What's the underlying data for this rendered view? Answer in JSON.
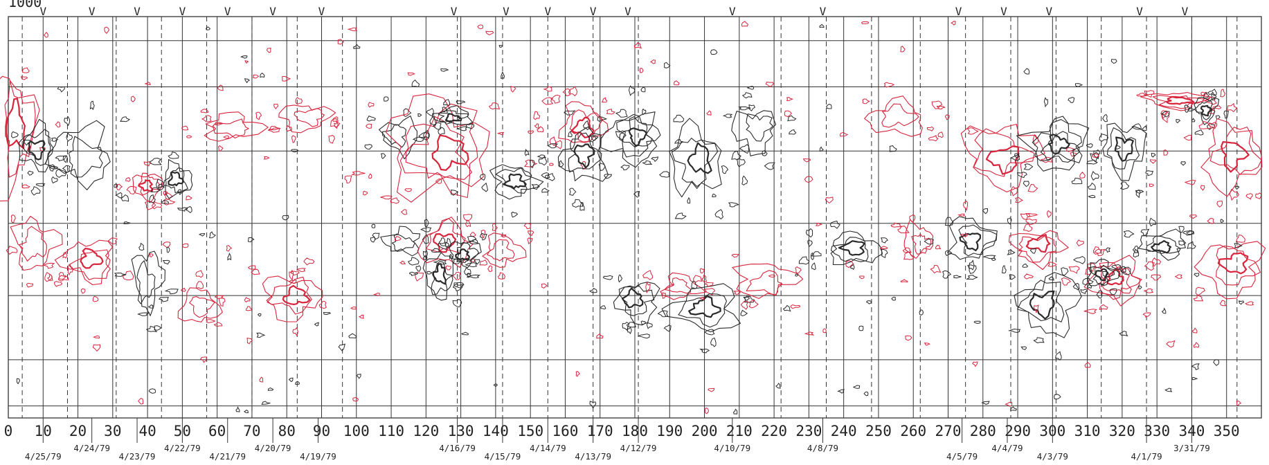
{
  "chart_data": {
    "type": "contour",
    "header_text": "1000",
    "xlim": [
      0,
      360
    ],
    "x_ticks": [
      0,
      10,
      20,
      30,
      40,
      50,
      60,
      70,
      80,
      90,
      100,
      110,
      120,
      130,
      140,
      150,
      160,
      170,
      180,
      190,
      200,
      210,
      220,
      230,
      240,
      250,
      260,
      270,
      280,
      290,
      300,
      310,
      320,
      330,
      340,
      350
    ],
    "grid_columns_deg": 10,
    "grid_row_fractions": [
      0.0,
      0.06,
      0.175,
      0.335,
      0.515,
      0.695,
      0.855,
      0.97,
      1.0
    ],
    "dashed_lines_deg": [
      4,
      17,
      31,
      44,
      57,
      70,
      83,
      96,
      129,
      142,
      155,
      168,
      181,
      222,
      235,
      248,
      262,
      275,
      288,
      301,
      314,
      327,
      340,
      353
    ],
    "markers": {
      "symbol": "V",
      "x": [
        10,
        24,
        37,
        50,
        63,
        76,
        90,
        128,
        143,
        155,
        168,
        178,
        208,
        234,
        273,
        286,
        299,
        325,
        338
      ]
    },
    "date_labels": [
      {
        "x": 10,
        "text": "4/25/79",
        "row": 2
      },
      {
        "x": 24,
        "text": "4/24/79",
        "row": 1
      },
      {
        "x": 37,
        "text": "4/23/79",
        "row": 2
      },
      {
        "x": 50,
        "text": "4/22/79",
        "row": 1
      },
      {
        "x": 63,
        "text": "4/21/79",
        "row": 2
      },
      {
        "x": 76,
        "text": "4/20/79",
        "row": 1
      },
      {
        "x": 89,
        "text": "4/19/79",
        "row": 2
      },
      {
        "x": 129,
        "text": "4/16/79",
        "row": 1
      },
      {
        "x": 142,
        "text": "4/15/79",
        "row": 2
      },
      {
        "x": 155,
        "text": "4/14/79",
        "row": 1
      },
      {
        "x": 168,
        "text": "4/13/79",
        "row": 2
      },
      {
        "x": 181,
        "text": "4/12/79",
        "row": 1
      },
      {
        "x": 208,
        "text": "4/10/79",
        "row": 1
      },
      {
        "x": 234,
        "text": "4/8/79",
        "row": 1
      },
      {
        "x": 274,
        "text": "4/5/79",
        "row": 2
      },
      {
        "x": 287,
        "text": "4/4/79",
        "row": 1
      },
      {
        "x": 300,
        "text": "4/3/79",
        "row": 2
      },
      {
        "x": 327,
        "text": "4/1/79",
        "row": 2
      },
      {
        "x": 340,
        "text": "3/31/79",
        "row": 1
      }
    ],
    "contour_colors": {
      "positive": "#d8243c",
      "negative": "#2a2a2a"
    },
    "regions": [
      {
        "polarity": "positive",
        "x": 2,
        "y": 0.29,
        "rx": 6,
        "ry": 0.13,
        "levels": 3
      },
      {
        "polarity": "negative",
        "x": 8,
        "y": 0.33,
        "rx": 5,
        "ry": 0.05,
        "levels": 3
      },
      {
        "polarity": "negative",
        "x": 22,
        "y": 0.35,
        "rx": 8,
        "ry": 0.07,
        "levels": 2
      },
      {
        "polarity": "positive",
        "x": 40,
        "y": 0.42,
        "rx": 4,
        "ry": 0.03,
        "levels": 3
      },
      {
        "polarity": "negative",
        "x": 48,
        "y": 0.41,
        "rx": 4,
        "ry": 0.04,
        "levels": 3
      },
      {
        "polarity": "positive",
        "x": 65,
        "y": 0.28,
        "rx": 8,
        "ry": 0.03,
        "levels": 2
      },
      {
        "polarity": "positive",
        "x": 86,
        "y": 0.25,
        "rx": 7,
        "ry": 0.03,
        "levels": 2
      },
      {
        "polarity": "negative",
        "x": 112,
        "y": 0.3,
        "rx": 5,
        "ry": 0.04,
        "levels": 2
      },
      {
        "polarity": "positive",
        "x": 125,
        "y": 0.34,
        "rx": 14,
        "ry": 0.12,
        "levels": 4
      },
      {
        "polarity": "negative",
        "x": 128,
        "y": 0.25,
        "rx": 5,
        "ry": 0.02,
        "levels": 3
      },
      {
        "polarity": "negative",
        "x": 145,
        "y": 0.41,
        "rx": 6,
        "ry": 0.04,
        "levels": 3
      },
      {
        "polarity": "positive",
        "x": 165,
        "y": 0.27,
        "rx": 6,
        "ry": 0.05,
        "levels": 3
      },
      {
        "polarity": "negative",
        "x": 165,
        "y": 0.35,
        "rx": 6,
        "ry": 0.06,
        "levels": 3
      },
      {
        "polarity": "negative",
        "x": 180,
        "y": 0.3,
        "rx": 7,
        "ry": 0.06,
        "levels": 4
      },
      {
        "polarity": "negative",
        "x": 198,
        "y": 0.36,
        "rx": 7,
        "ry": 0.08,
        "levels": 3
      },
      {
        "polarity": "negative",
        "x": 215,
        "y": 0.28,
        "rx": 6,
        "ry": 0.05,
        "levels": 2
      },
      {
        "polarity": "positive",
        "x": 255,
        "y": 0.25,
        "rx": 8,
        "ry": 0.04,
        "levels": 2
      },
      {
        "polarity": "positive",
        "x": 285,
        "y": 0.35,
        "rx": 10,
        "ry": 0.07,
        "levels": 3
      },
      {
        "polarity": "negative",
        "x": 302,
        "y": 0.32,
        "rx": 8,
        "ry": 0.06,
        "levels": 4
      },
      {
        "polarity": "negative",
        "x": 320,
        "y": 0.33,
        "rx": 6,
        "ry": 0.06,
        "levels": 3
      },
      {
        "polarity": "positive",
        "x": 336,
        "y": 0.21,
        "rx": 8,
        "ry": 0.02,
        "levels": 3
      },
      {
        "polarity": "negative",
        "x": 344,
        "y": 0.23,
        "rx": 3,
        "ry": 0.03,
        "levels": 3
      },
      {
        "polarity": "positive",
        "x": 352,
        "y": 0.34,
        "rx": 8,
        "ry": 0.08,
        "levels": 3
      },
      {
        "polarity": "positive",
        "x": 8,
        "y": 0.56,
        "rx": 6,
        "ry": 0.06,
        "levels": 2
      },
      {
        "polarity": "positive",
        "x": 24,
        "y": 0.61,
        "rx": 7,
        "ry": 0.05,
        "levels": 3
      },
      {
        "polarity": "negative",
        "x": 40,
        "y": 0.66,
        "rx": 4,
        "ry": 0.07,
        "levels": 2
      },
      {
        "polarity": "positive",
        "x": 55,
        "y": 0.72,
        "rx": 5,
        "ry": 0.04,
        "levels": 2
      },
      {
        "polarity": "positive",
        "x": 82,
        "y": 0.7,
        "rx": 8,
        "ry": 0.05,
        "levels": 3
      },
      {
        "polarity": "negative",
        "x": 113,
        "y": 0.56,
        "rx": 5,
        "ry": 0.03,
        "levels": 2
      },
      {
        "polarity": "positive",
        "x": 125,
        "y": 0.56,
        "rx": 7,
        "ry": 0.05,
        "levels": 3
      },
      {
        "polarity": "negative",
        "x": 124,
        "y": 0.65,
        "rx": 4,
        "ry": 0.05,
        "levels": 3
      },
      {
        "polarity": "negative",
        "x": 131,
        "y": 0.59,
        "rx": 4,
        "ry": 0.03,
        "levels": 3
      },
      {
        "polarity": "positive",
        "x": 142,
        "y": 0.58,
        "rx": 5,
        "ry": 0.04,
        "levels": 2
      },
      {
        "polarity": "negative",
        "x": 180,
        "y": 0.71,
        "rx": 6,
        "ry": 0.05,
        "levels": 3
      },
      {
        "polarity": "positive",
        "x": 193,
        "y": 0.67,
        "rx": 5,
        "ry": 0.03,
        "levels": 2
      },
      {
        "polarity": "negative",
        "x": 200,
        "y": 0.73,
        "rx": 9,
        "ry": 0.05,
        "levels": 3
      },
      {
        "polarity": "positive",
        "x": 218,
        "y": 0.66,
        "rx": 8,
        "ry": 0.04,
        "levels": 2
      },
      {
        "polarity": "negative",
        "x": 242,
        "y": 0.58,
        "rx": 7,
        "ry": 0.04,
        "levels": 3
      },
      {
        "polarity": "positive",
        "x": 262,
        "y": 0.56,
        "rx": 4,
        "ry": 0.04,
        "levels": 2
      },
      {
        "polarity": "negative",
        "x": 277,
        "y": 0.56,
        "rx": 6,
        "ry": 0.05,
        "levels": 3
      },
      {
        "polarity": "positive",
        "x": 296,
        "y": 0.57,
        "rx": 7,
        "ry": 0.04,
        "levels": 3
      },
      {
        "polarity": "negative",
        "x": 298,
        "y": 0.72,
        "rx": 8,
        "ry": 0.07,
        "levels": 3
      },
      {
        "polarity": "positive",
        "x": 318,
        "y": 0.66,
        "rx": 7,
        "ry": 0.05,
        "levels": 4
      },
      {
        "polarity": "negative",
        "x": 314,
        "y": 0.64,
        "rx": 4,
        "ry": 0.03,
        "levels": 3
      },
      {
        "polarity": "negative",
        "x": 332,
        "y": 0.57,
        "rx": 6,
        "ry": 0.03,
        "levels": 3
      },
      {
        "polarity": "positive",
        "x": 352,
        "y": 0.62,
        "rx": 8,
        "ry": 0.06,
        "levels": 3
      }
    ],
    "grid": true,
    "legend": "none"
  }
}
